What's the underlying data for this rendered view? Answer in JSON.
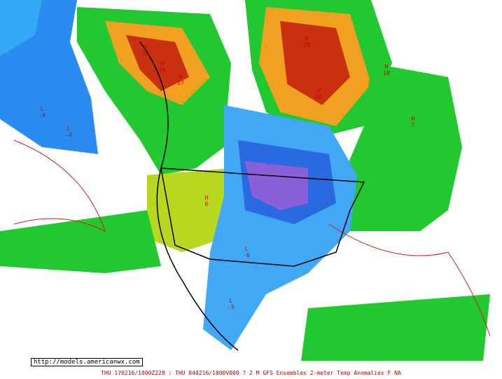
{
  "source_url": "http://models.americanwx.com",
  "caption": "THU 170216/1800Z228 : THU 840216/1800V000  ? 2 M GFS Ensembles 2-meter Temp Anomalies F NA",
  "markers": [
    {
      "kind": "H",
      "value": "26"
    },
    {
      "kind": "H",
      "value": "26"
    },
    {
      "kind": "H",
      "value": "27"
    },
    {
      "kind": "H",
      "value": "29"
    },
    {
      "kind": "H",
      "value": "26"
    },
    {
      "kind": "H",
      "value": "10"
    },
    {
      "kind": "L",
      "value": "-4"
    },
    {
      "kind": "L",
      "value": "-4"
    },
    {
      "kind": "L",
      "value": "-6"
    },
    {
      "kind": "L",
      "value": "-5"
    },
    {
      "kind": "H",
      "value": "6"
    },
    {
      "kind": "H",
      "value": "7"
    }
  ]
}
